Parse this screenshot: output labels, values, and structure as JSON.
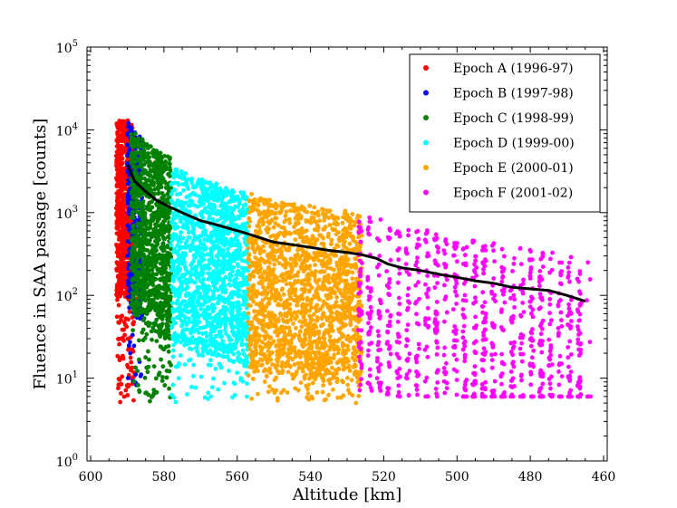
{
  "chart_data": {
    "type": "scatter",
    "title": "",
    "xlabel": "Altitude [km]",
    "ylabel": "Fluence in SAA passage [counts]",
    "xlim": [
      601,
      459
    ],
    "ylim_log10": [
      0,
      5
    ],
    "x_ticks": [
      600,
      580,
      560,
      540,
      520,
      500,
      480,
      460
    ],
    "y_ticks": [
      {
        "base": "10",
        "exp": "0",
        "value": 1
      },
      {
        "base": "10",
        "exp": "1",
        "value": 10
      },
      {
        "base": "10",
        "exp": "2",
        "value": 100
      },
      {
        "base": "10",
        "exp": "3",
        "value": 1000
      },
      {
        "base": "10",
        "exp": "4",
        "value": 10000
      },
      {
        "base": "10",
        "exp": "5",
        "value": 100000
      }
    ],
    "legend_position": "top-right",
    "series": [
      {
        "name": "Epoch A (1996-97)",
        "color": "#ff0000",
        "x_range": [
          588,
          593
        ],
        "fluence_range": [
          5,
          13000
        ]
      },
      {
        "name": "Epoch B (1997-98)",
        "color": "#0000ff",
        "x_range": [
          586,
          590
        ],
        "fluence_range": [
          8,
          12500
        ]
      },
      {
        "name": "Epoch C (1998-99)",
        "color": "#008000",
        "x_range": [
          578,
          589
        ],
        "fluence_range": [
          5,
          9000
        ]
      },
      {
        "name": "Epoch D (1999-00)",
        "color": "#00ffff",
        "x_range": [
          557,
          578
        ],
        "fluence_range": [
          5,
          4000
        ]
      },
      {
        "name": "Epoch E (2000-01)",
        "color": "#ffa500",
        "x_range": [
          526,
          557
        ],
        "fluence_range": [
          5,
          2000
        ]
      },
      {
        "name": "Epoch F (2001-02)",
        "color": "#ff00ff",
        "x_range": [
          464,
          527
        ],
        "fluence_range": [
          6,
          1000
        ]
      }
    ],
    "median_line": {
      "name": "median fluence",
      "color": "#000000",
      "points": [
        [
          590,
          3800
        ],
        [
          588,
          2400
        ],
        [
          585,
          1800
        ],
        [
          582,
          1400
        ],
        [
          578,
          1150
        ],
        [
          574,
          950
        ],
        [
          570,
          800
        ],
        [
          566,
          720
        ],
        [
          562,
          640
        ],
        [
          558,
          570
        ],
        [
          554,
          500
        ],
        [
          550,
          440
        ],
        [
          545,
          410
        ],
        [
          540,
          380
        ],
        [
          535,
          350
        ],
        [
          530,
          330
        ],
        [
          526,
          310
        ],
        [
          522,
          280
        ],
        [
          519,
          240
        ],
        [
          515,
          215
        ],
        [
          510,
          200
        ],
        [
          505,
          180
        ],
        [
          500,
          165
        ],
        [
          495,
          150
        ],
        [
          490,
          140
        ],
        [
          485,
          125
        ],
        [
          480,
          120
        ],
        [
          475,
          115
        ],
        [
          470,
          100
        ],
        [
          465,
          85
        ]
      ]
    }
  }
}
